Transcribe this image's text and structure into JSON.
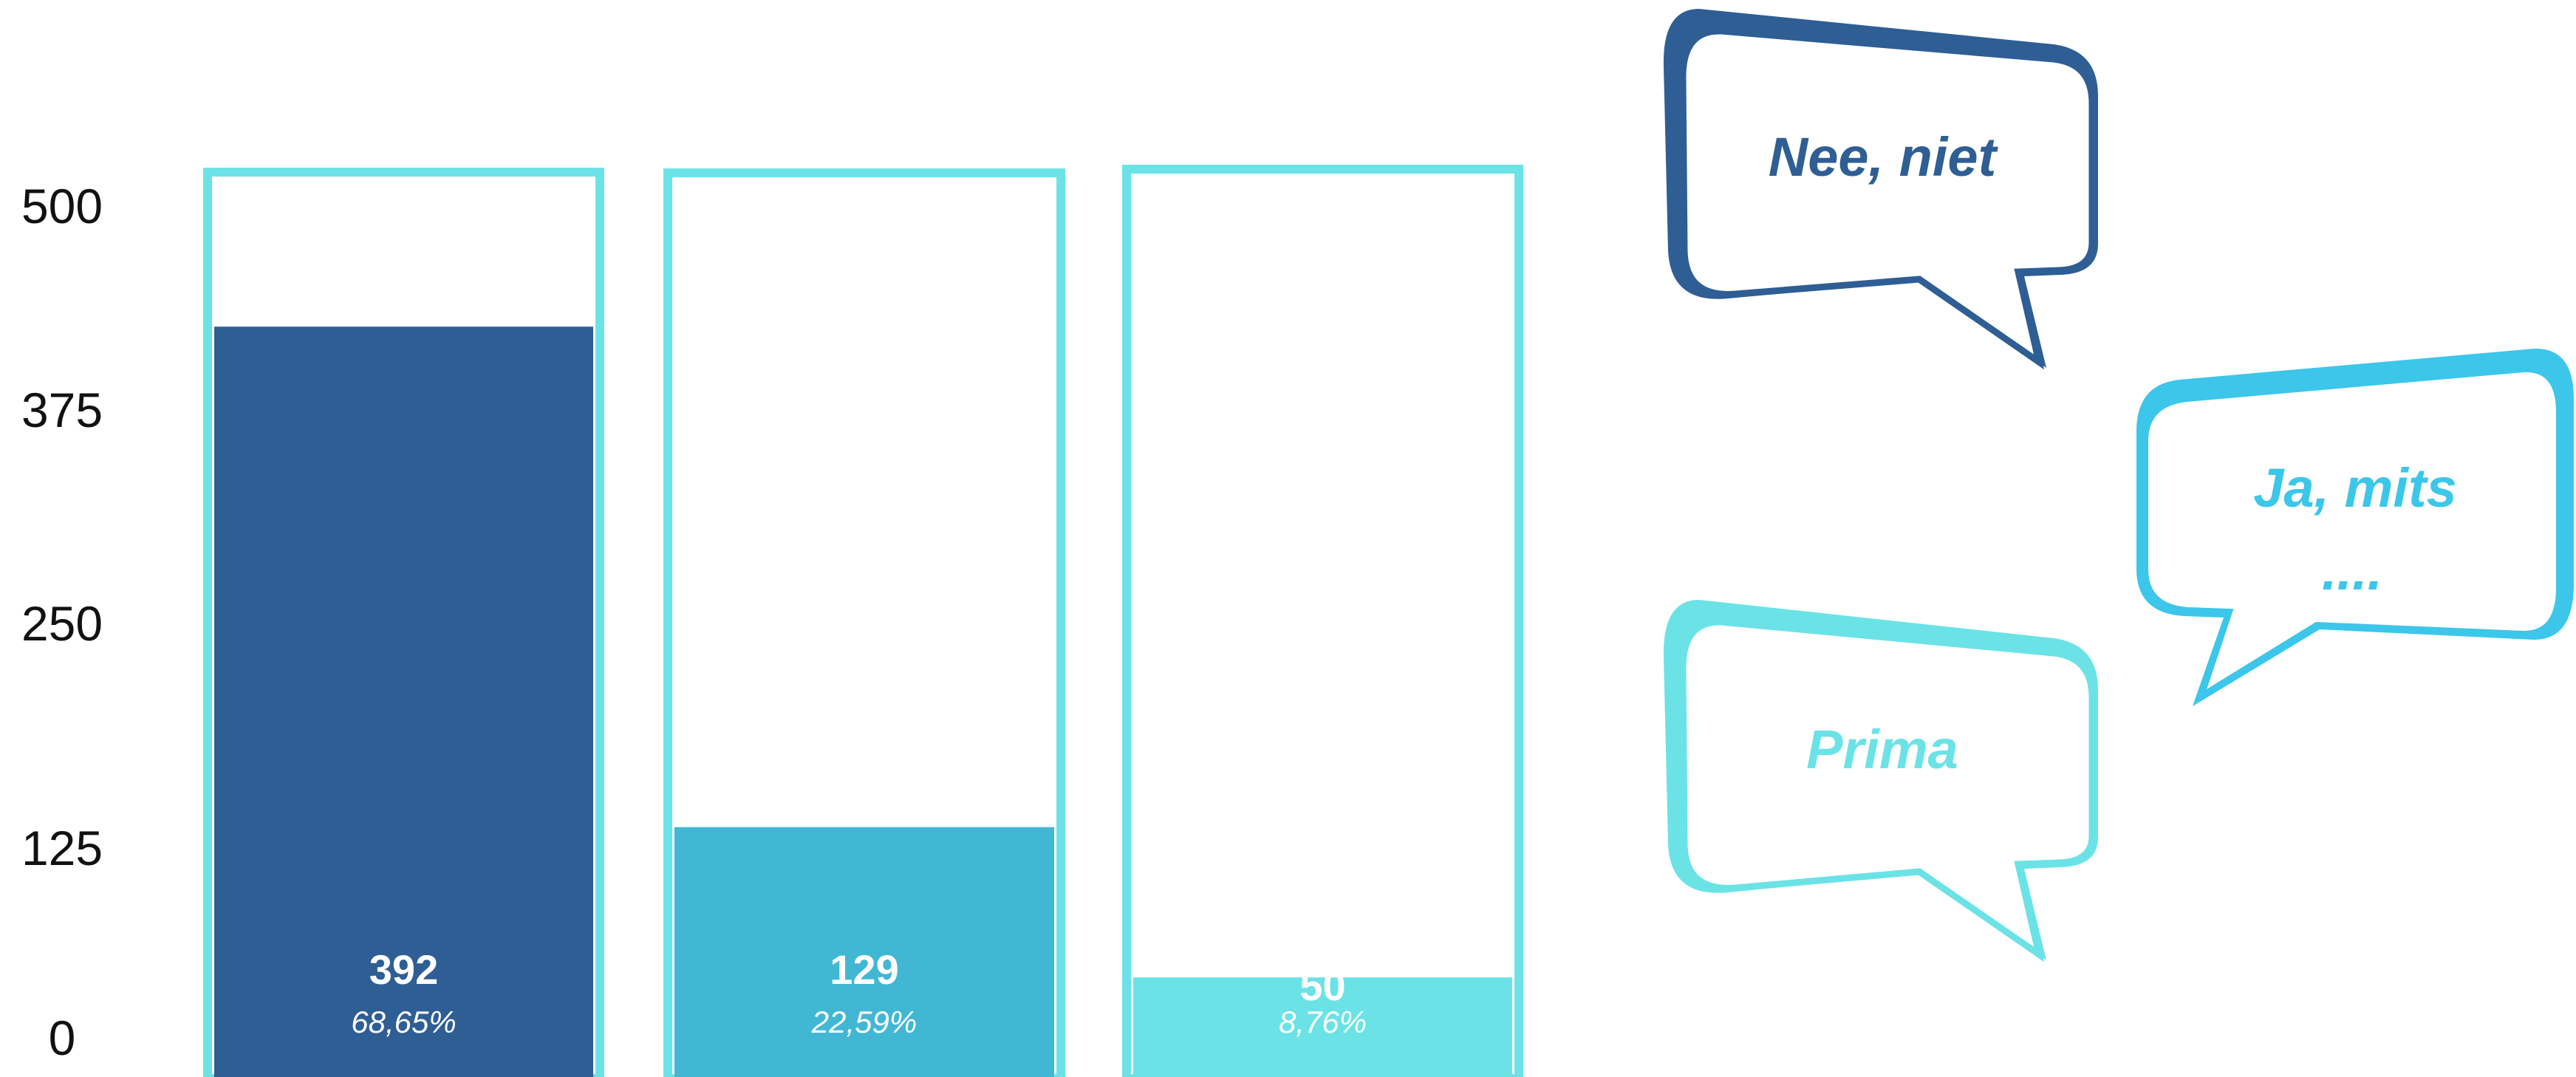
{
  "chart_data": {
    "type": "bar",
    "values": [
      392,
      129,
      50
    ],
    "value_labels": [
      "392",
      "129",
      "50"
    ],
    "percent_labels": [
      "68,65%",
      "22,59%",
      "8,76%"
    ],
    "ylim": [
      0,
      500
    ],
    "y_ticks": [
      "0",
      "125",
      "250",
      "375",
      "500"
    ],
    "grid": false,
    "colors": [
      "#2E5E94",
      "#42B7D4",
      "#6BE3E6"
    ],
    "outline_color": "#6BE3E6"
  },
  "bubbles": [
    {
      "text": "Nee, niet",
      "color": "#2E5E94"
    },
    {
      "text": "Ja, mits",
      "text2": "....",
      "color": "#3CC6EA"
    },
    {
      "text": "Prima",
      "color": "#6BE3E6"
    }
  ]
}
